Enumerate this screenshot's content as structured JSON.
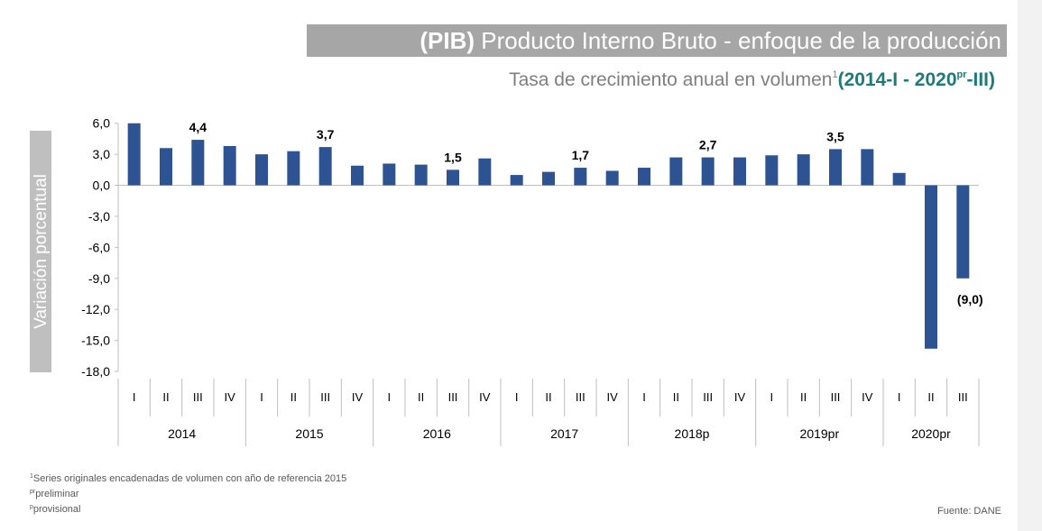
{
  "chart_data": {
    "type": "bar",
    "title_prefix": "(PIB)",
    "title": "Producto Interno Bruto  - enfoque de la producción",
    "subtitle": "Tasa de crecimiento anual en volumen",
    "subtitle_mark": "1",
    "subtitle_range": [
      "(2014-I - 2020",
      "pr",
      "-III)"
    ],
    "y_label": "Variación porcentual",
    "groups": [
      {
        "label": "2014",
        "quarters": [
          "I",
          "II",
          "III",
          "IV"
        ]
      },
      {
        "label": "2015",
        "quarters": [
          "I",
          "II",
          "III",
          "IV"
        ]
      },
      {
        "label": "2016",
        "quarters": [
          "I",
          "II",
          "III",
          "IV"
        ]
      },
      {
        "label": "2017",
        "quarters": [
          "I",
          "II",
          "III",
          "IV"
        ]
      },
      {
        "label": "2018p",
        "quarters": [
          "I",
          "II",
          "III",
          "IV"
        ]
      },
      {
        "label": "2019pr",
        "quarters": [
          "I",
          "II",
          "III",
          "IV"
        ]
      },
      {
        "label": "2020pr",
        "quarters": [
          "I",
          "II",
          "III"
        ]
      }
    ],
    "values": [
      6.0,
      3.6,
      4.4,
      3.8,
      3.0,
      3.3,
      3.7,
      1.9,
      2.1,
      2.0,
      1.5,
      2.6,
      1.0,
      1.3,
      1.7,
      1.4,
      1.7,
      2.7,
      2.7,
      2.7,
      2.9,
      3.0,
      3.5,
      3.5,
      1.2,
      -15.8,
      -9.0
    ],
    "value_labels": [
      null,
      null,
      "4,4",
      null,
      null,
      null,
      "3,7",
      null,
      null,
      null,
      "1,5",
      null,
      null,
      null,
      "1,7",
      null,
      null,
      null,
      "2,7",
      null,
      null,
      null,
      "3,5",
      null,
      null,
      null,
      "(9,0)"
    ],
    "color": "#2e5392",
    "ylim": [
      -18,
      6.5
    ],
    "yticks": [
      {
        "value": 6,
        "label": "6,0"
      },
      {
        "value": 3,
        "label": "3,0"
      },
      {
        "value": 0,
        "label": "0,0"
      },
      {
        "value": -3,
        "label": "-3,0"
      },
      {
        "value": -6,
        "label": "-6,0"
      },
      {
        "value": -9,
        "label": "-9,0"
      },
      {
        "value": -12,
        "label": "-12,0"
      },
      {
        "value": -15,
        "label": "-15,0"
      },
      {
        "value": -18,
        "label": "-18,0"
      }
    ],
    "footnotes": [
      {
        "mark": "1",
        "text": "Series originales encadenadas de volumen con año de referencia 2015"
      },
      {
        "mark": "pr",
        "text": "preliminar"
      },
      {
        "mark": "p",
        "text": "provisional"
      }
    ],
    "source": "Fuente: DANE"
  }
}
